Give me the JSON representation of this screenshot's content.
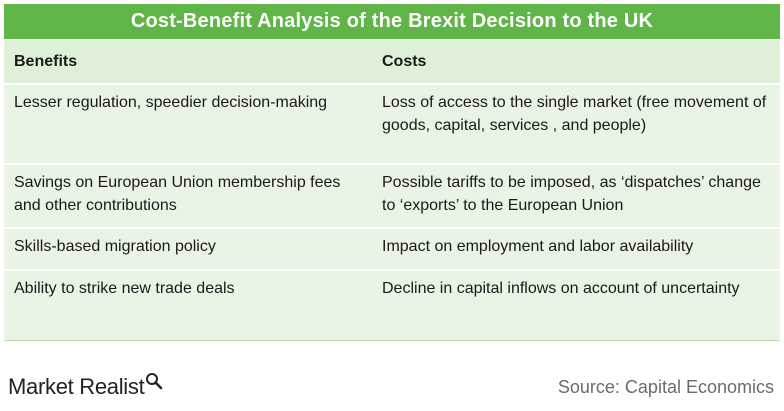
{
  "title": "Cost-Benefit Analysis of the Brexit Decision to the UK",
  "columns": {
    "benefits": "Benefits",
    "costs": "Costs"
  },
  "rows": [
    {
      "benefit": "Lesser regulation, speedier decision-making",
      "cost": "Loss of access to the single market (free movement of goods, capital, services , and people)"
    },
    {
      "benefit": "Savings on European Union membership fees and other contributions",
      "cost": "Possible tariffs to be imposed, as ‘dispatches’ change to ‘exports’ to the European Union"
    },
    {
      "benefit": "Skills-based migration policy",
      "cost": "Impact on employment and labor availability"
    },
    {
      "benefit": "Ability to strike new trade deals",
      "cost": "Decline in capital inflows on account of uncertainty"
    }
  ],
  "footer": {
    "logo_text": "Market Realist",
    "logo_icon": "magnifier-icon",
    "source": "Source: Capital Economics"
  },
  "colors": {
    "title_bg": "#5fb547",
    "header_bg": "#dff0d8",
    "row_bg": "#e9f4e4"
  }
}
